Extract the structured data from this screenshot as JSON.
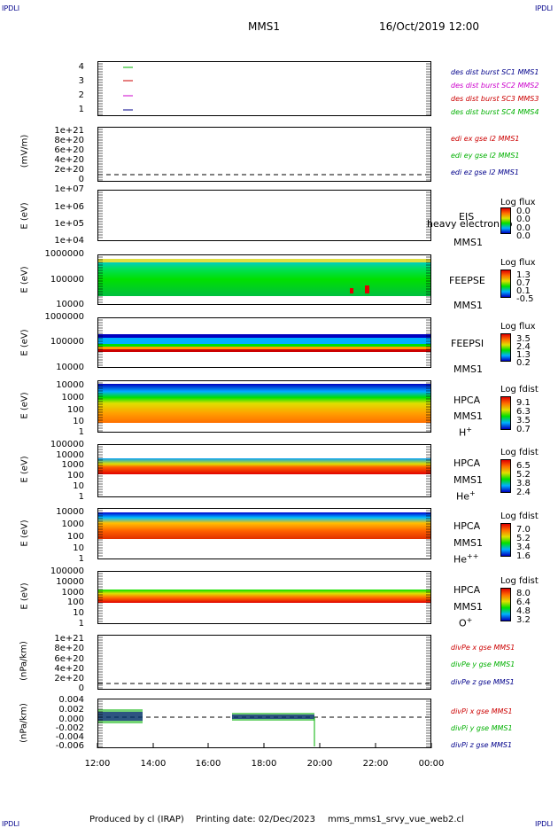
{
  "header": {
    "corner_left": "IPDLI",
    "corner_right": "IPDLI",
    "title": "MMS1",
    "datetime": "16/Oct/2019 12:00"
  },
  "footer": {
    "corner_left": "IPDLI",
    "corner_right": "IPDLI",
    "produced": "Produced by cl (IRAP)",
    "printed": "Printing date: 02/Dec/2023",
    "file": "mms_mms1_srvy_vue_web2.cl"
  },
  "colors": {
    "blue": "#00008b",
    "magenta": "#cc00cc",
    "red": "#cc0000",
    "green": "#00b000"
  },
  "chart_data": [
    {
      "type": "line",
      "panel": "des dist burst",
      "ylabel": "",
      "yticks": [
        "4",
        "3",
        "2",
        "1"
      ],
      "series": [
        {
          "name": "des dist burst SC1 MMS1",
          "color": "#00008b"
        },
        {
          "name": "des dist burst SC2 MMS2",
          "color": "#cc00cc"
        },
        {
          "name": "des dist burst SC3 MMS3",
          "color": "#cc0000"
        },
        {
          "name": "des dist burst SC4 MMS4",
          "color": "#00b000"
        }
      ]
    },
    {
      "type": "line",
      "panel": "edi",
      "ylabel": "(mV/m)",
      "yticks": [
        "1e+21",
        "8e+20",
        "6e+20",
        "4e+20",
        "2e+20",
        "0"
      ],
      "series": [
        {
          "name": "edi ex gse l2 MMS1",
          "color": "#cc0000"
        },
        {
          "name": "edi ey gse l2 MMS1",
          "color": "#00b000"
        },
        {
          "name": "edi ez gse l2 MMS1",
          "color": "#00008b"
        }
      ]
    },
    {
      "type": "heatmap",
      "panel": "EIS",
      "ylabel": "E (eV)",
      "yticks": [
        "1e+07",
        "1e+06",
        "1e+05",
        "1e+04"
      ],
      "instrument": [
        "EIS",
        "MMS1"
      ],
      "overlay": "heavy electron to",
      "colorbar": {
        "title": "Log flux",
        "values": [
          "0.0",
          "0.0",
          "0.0",
          "0.0"
        ]
      }
    },
    {
      "type": "heatmap",
      "panel": "FEEPSE",
      "ylabel": "E (eV)",
      "yticks": [
        "1000000",
        "100000",
        "10000"
      ],
      "instrument": [
        "FEEPSE",
        "MMS1"
      ],
      "colorbar": {
        "title": "Log flux",
        "values": [
          "1.3",
          "0.7",
          "0.1",
          "-0.5"
        ]
      }
    },
    {
      "type": "heatmap",
      "panel": "FEEPSI",
      "ylabel": "E (eV)",
      "yticks": [
        "1000000",
        "100000",
        "10000"
      ],
      "instrument": [
        "FEEPSI",
        "MMS1"
      ],
      "colorbar": {
        "title": "Log flux",
        "values": [
          "3.5",
          "2.4",
          "1.3",
          "0.2"
        ]
      }
    },
    {
      "type": "heatmap",
      "panel": "HPCA H+",
      "ylabel": "E (eV)",
      "yticks": [
        "10000",
        "1000",
        "100",
        "10",
        "1"
      ],
      "instrument": [
        "HPCA",
        "MMS1"
      ],
      "species": "H",
      "species_sup": "+",
      "colorbar": {
        "title": "Log fdist",
        "values": [
          "9.1",
          "6.3",
          "3.5",
          "0.7"
        ]
      }
    },
    {
      "type": "heatmap",
      "panel": "HPCA He+",
      "ylabel": "E (eV)",
      "yticks": [
        "100000",
        "10000",
        "1000",
        "100",
        "10",
        "1"
      ],
      "instrument": [
        "HPCA",
        "MMS1"
      ],
      "species": "He",
      "species_sup": "+",
      "colorbar": {
        "title": "Log fdist",
        "values": [
          "6.5",
          "5.2",
          "3.8",
          "2.4"
        ]
      }
    },
    {
      "type": "heatmap",
      "panel": "HPCA He++",
      "ylabel": "E (eV)",
      "yticks": [
        "10000",
        "1000",
        "100",
        "10",
        "1"
      ],
      "instrument": [
        "HPCA",
        "MMS1"
      ],
      "species": "He",
      "species_sup": "++",
      "colorbar": {
        "title": "Log fdist",
        "values": [
          "7.0",
          "5.2",
          "3.4",
          "1.6"
        ]
      }
    },
    {
      "type": "heatmap",
      "panel": "HPCA O+",
      "ylabel": "E (eV)",
      "yticks": [
        "100000",
        "10000",
        "1000",
        "100",
        "10",
        "1"
      ],
      "instrument": [
        "HPCA",
        "MMS1"
      ],
      "species": "O",
      "species_sup": "+",
      "colorbar": {
        "title": "Log fdist",
        "values": [
          "8.0",
          "6.4",
          "4.8",
          "3.2"
        ]
      }
    },
    {
      "type": "line",
      "panel": "divPe",
      "ylabel": "(nPa/km)",
      "yticks": [
        "1e+21",
        "8e+20",
        "6e+20",
        "4e+20",
        "2e+20",
        "0"
      ],
      "series": [
        {
          "name": "divPe x gse MMS1",
          "color": "#cc0000"
        },
        {
          "name": "divPe y gse MMS1",
          "color": "#00b000"
        },
        {
          "name": "divPe z gse MMS1",
          "color": "#00008b"
        }
      ]
    },
    {
      "type": "line",
      "panel": "divPi",
      "ylabel": "(nPa/km)",
      "yticks": [
        "0.004",
        "0.002",
        "0.000",
        "-0.002",
        "-0.004",
        "-0.006"
      ],
      "series": [
        {
          "name": "divPi x gse MMS1",
          "color": "#cc0000"
        },
        {
          "name": "divPi y gse MMS1",
          "color": "#00b000"
        },
        {
          "name": "divPi z gse MMS1",
          "color": "#00008b"
        }
      ]
    }
  ],
  "xaxis": {
    "ticks": [
      "12:00",
      "14:00",
      "16:00",
      "18:00",
      "20:00",
      "22:00",
      "00:00"
    ]
  }
}
